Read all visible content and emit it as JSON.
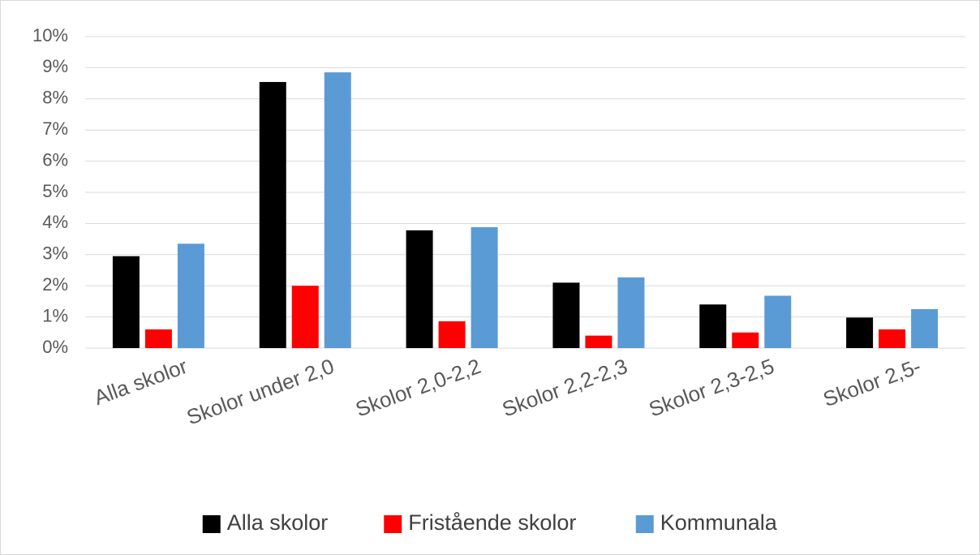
{
  "chart_data": {
    "type": "bar",
    "categories": [
      "Alla skolor",
      "Skolor under 2,0",
      "Skolor 2,0-2,2",
      "Skolor 2,2-2,3",
      "Skolor 2,3-2,5",
      "Skolor 2,5-"
    ],
    "series": [
      {
        "name": "Alla skolor",
        "color": "#000000",
        "values": [
          2.95,
          8.54,
          3.78,
          2.1,
          1.4,
          0.98
        ]
      },
      {
        "name": "Fristående skolor",
        "color": "#ff0000",
        "values": [
          0.6,
          2.0,
          0.86,
          0.4,
          0.5,
          0.6
        ]
      },
      {
        "name": "Kommunala",
        "color": "#5b9bd5",
        "values": [
          3.35,
          8.85,
          3.88,
          2.27,
          1.68,
          1.25
        ]
      }
    ],
    "ylim": [
      0,
      10
    ],
    "yticks": [
      {
        "value": 0,
        "label": "0%"
      },
      {
        "value": 1,
        "label": "1%"
      },
      {
        "value": 2,
        "label": "2%"
      },
      {
        "value": 3,
        "label": "3%"
      },
      {
        "value": 4,
        "label": "4%"
      },
      {
        "value": 5,
        "label": "5%"
      },
      {
        "value": 6,
        "label": "6%"
      },
      {
        "value": 7,
        "label": "7%"
      },
      {
        "value": 8,
        "label": "8%"
      },
      {
        "value": 9,
        "label": "9%"
      },
      {
        "value": 10,
        "label": "10%"
      }
    ],
    "grid": true,
    "legend": "bottom"
  }
}
